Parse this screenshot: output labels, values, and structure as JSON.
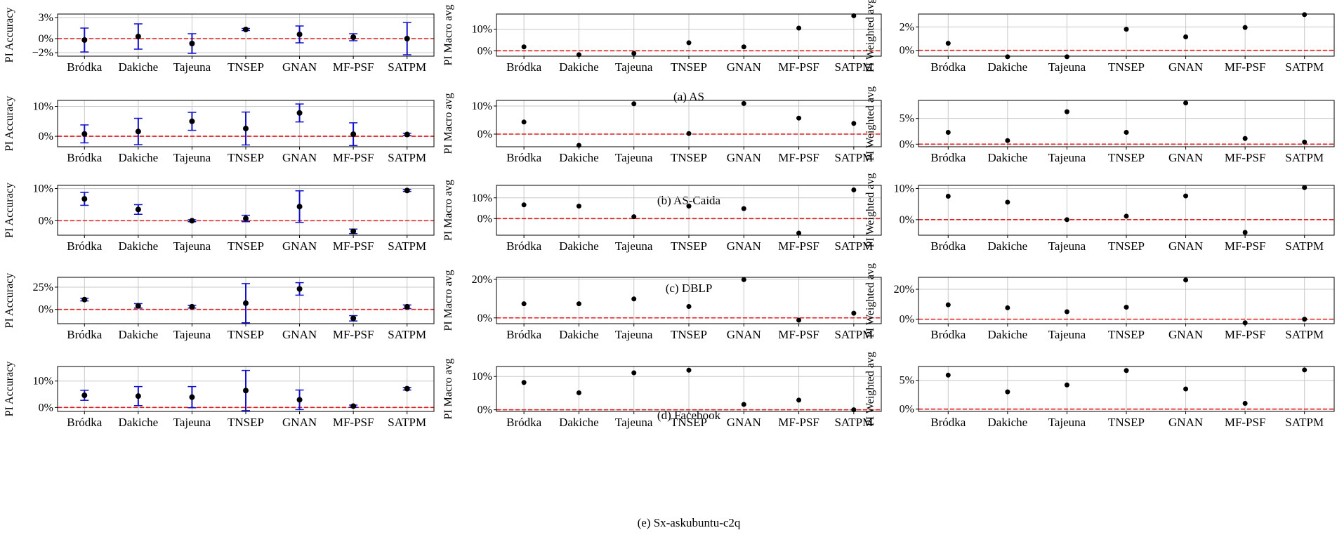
{
  "colors": {
    "ref_line": "#e41a1c",
    "error_bar": "#1111cc",
    "point": "#000000",
    "grid": "#c8c8c8",
    "frame": "#000000"
  },
  "categories": [
    "Bródka",
    "Dakiche",
    "Tajeuna",
    "TNSEP",
    "GNAN",
    "MF-PSF",
    "SATPM"
  ],
  "rows": [
    {
      "caption": "(a) AS",
      "charts": [
        {
          "type": "scatter-errorbar",
          "ylabel": "PI Accuracy",
          "ylim": [
            -2.5,
            3.5
          ],
          "yticks": [
            -2,
            0,
            3
          ],
          "ytick_labels": [
            "−2%",
            "0%",
            "3%"
          ],
          "values": [
            -0.2,
            0.3,
            -0.7,
            1.3,
            0.6,
            0.2,
            0.0
          ],
          "errors": [
            1.7,
            1.8,
            1.4,
            0.15,
            1.2,
            0.5,
            2.3
          ]
        },
        {
          "type": "scatter",
          "ylabel": "PI Macro avg",
          "ylim": [
            -2.5,
            17
          ],
          "yticks": [
            0,
            10
          ],
          "ytick_labels": [
            "0%",
            "10%"
          ],
          "values": [
            1.8,
            -1.8,
            -1.2,
            3.7,
            1.8,
            10.5,
            16.2
          ]
        },
        {
          "type": "scatter",
          "ylabel": "PI Weighted avg",
          "ylim": [
            -0.5,
            3.1
          ],
          "yticks": [
            0,
            2
          ],
          "ytick_labels": [
            "0%",
            "2%"
          ],
          "values": [
            0.6,
            -0.55,
            -0.55,
            1.8,
            1.15,
            1.95,
            3.05
          ]
        }
      ]
    },
    {
      "caption": "(b) AS-Caida",
      "charts": [
        {
          "type": "scatter-errorbar",
          "ylabel": "PI Accuracy",
          "ylim": [
            -3.5,
            12
          ],
          "yticks": [
            0,
            10
          ],
          "ytick_labels": [
            "0%",
            "10%"
          ],
          "values": [
            0.8,
            1.6,
            5.0,
            2.6,
            7.8,
            0.7,
            0.6
          ],
          "errors": [
            3.0,
            4.4,
            3.0,
            5.5,
            3.0,
            3.8,
            0.4
          ]
        },
        {
          "type": "scatter",
          "ylabel": "PI Macro avg",
          "ylim": [
            -4.5,
            12
          ],
          "yticks": [
            0,
            10
          ],
          "ytick_labels": [
            "0%",
            "10%"
          ],
          "values": [
            4.3,
            -4.0,
            10.8,
            0.2,
            10.9,
            5.7,
            3.8
          ]
        },
        {
          "type": "scatter",
          "ylabel": "PI Weighted avg",
          "ylim": [
            -0.5,
            8.5
          ],
          "yticks": [
            0,
            5
          ],
          "ytick_labels": [
            "0%",
            "5%"
          ],
          "values": [
            2.3,
            0.7,
            6.3,
            2.3,
            8.0,
            1.1,
            0.4
          ]
        }
      ]
    },
    {
      "caption": "(c) DBLP",
      "charts": [
        {
          "type": "scatter-errorbar",
          "ylabel": "PI Accuracy",
          "ylim": [
            -4.5,
            11.0
          ],
          "yticks": [
            0,
            10
          ],
          "ytick_labels": [
            "0%",
            "10%"
          ],
          "values": [
            6.8,
            3.5,
            0.0,
            0.7,
            4.4,
            -3.3,
            9.4
          ],
          "errors": [
            2.0,
            1.5,
            0.3,
            1.0,
            4.9,
            0.7,
            0.3
          ]
        },
        {
          "type": "scatter",
          "ylabel": "PI Macro avg",
          "ylim": [
            -8.0,
            16.0
          ],
          "yticks": [
            0,
            10
          ],
          "ytick_labels": [
            "0%",
            "10%"
          ],
          "values": [
            6.6,
            6.0,
            0.9,
            6.0,
            4.8,
            -7.0,
            13.8
          ]
        },
        {
          "type": "scatter",
          "ylabel": "PI Weighted avg",
          "ylim": [
            -5.0,
            11.0
          ],
          "yticks": [
            0,
            10
          ],
          "ytick_labels": [
            "0%",
            "10%"
          ],
          "values": [
            7.5,
            5.6,
            0.0,
            1.1,
            7.6,
            -4.1,
            10.3
          ]
        }
      ]
    },
    {
      "caption": "(d) Facebook",
      "charts": [
        {
          "type": "scatter-errorbar",
          "ylabel": "PI Accuracy",
          "ylim": [
            -16,
            36
          ],
          "yticks": [
            0,
            25
          ],
          "ytick_labels": [
            "0%",
            "25%"
          ],
          "values": [
            11,
            4,
            3,
            7,
            23,
            -10,
            3
          ],
          "errors": [
            1.5,
            2.5,
            1.5,
            22,
            7,
            3,
            2
          ]
        },
        {
          "type": "scatter",
          "ylabel": "PI Macro avg",
          "ylim": [
            -3,
            21
          ],
          "yticks": [
            0,
            20
          ],
          "ytick_labels": [
            "0%",
            "20%"
          ],
          "values": [
            7.3,
            7.3,
            9.8,
            5.9,
            19.8,
            -1.2,
            2.4
          ]
        },
        {
          "type": "scatter",
          "ylabel": "PI Weighted avg",
          "ylim": [
            -3,
            28
          ],
          "yticks": [
            0,
            20
          ],
          "ytick_labels": [
            "0%",
            "20%"
          ],
          "values": [
            9.6,
            7.6,
            5.0,
            8.0,
            26.2,
            -2.4,
            0.0
          ]
        }
      ]
    },
    {
      "caption": "(e) Sx-askubuntu-c2q",
      "charts": [
        {
          "type": "scatter-errorbar",
          "ylabel": "PI Accuracy",
          "ylim": [
            -1.5,
            15.5
          ],
          "yticks": [
            0,
            10
          ],
          "ytick_labels": [
            "0%",
            "10%"
          ],
          "values": [
            4.6,
            4.3,
            3.9,
            6.4,
            2.9,
            0.5,
            7.1
          ],
          "errors": [
            1.9,
            3.6,
            4.0,
            7.6,
            3.7,
            0.4,
            0.5
          ]
        },
        {
          "type": "scatter",
          "ylabel": "PI Macro avg",
          "ylim": [
            -0.5,
            13
          ],
          "yticks": [
            0,
            10
          ],
          "ytick_labels": [
            "0%",
            "10%"
          ],
          "values": [
            8.2,
            5.1,
            11.1,
            11.9,
            1.6,
            2.9,
            0.0
          ]
        },
        {
          "type": "scatter",
          "ylabel": "PI Weighted avg",
          "ylim": [
            -0.4,
            7.4
          ],
          "yticks": [
            0,
            5
          ],
          "ytick_labels": [
            "0%",
            "5%"
          ],
          "values": [
            5.9,
            3.0,
            4.2,
            6.7,
            3.5,
            1.0,
            6.8
          ]
        }
      ]
    }
  ]
}
